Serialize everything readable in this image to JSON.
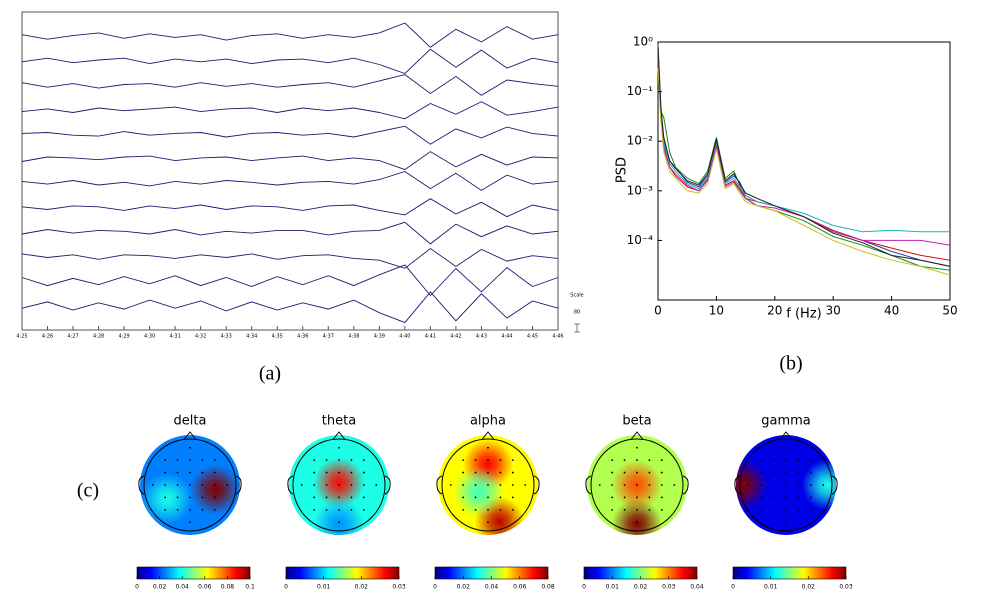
{
  "chart_data": [
    {
      "type": "eeg",
      "caption": "(a)",
      "scale_title": "Scale",
      "scale_text": "80",
      "color": "#1c1c70",
      "x": [
        25,
        26,
        27,
        28,
        29,
        30,
        31,
        32,
        33,
        34,
        35,
        36,
        37,
        38,
        39,
        40,
        41,
        42,
        43,
        44,
        45,
        46
      ],
      "xlim": [
        25,
        46
      ],
      "xticks": [
        {
          "value": 25,
          "label": "4:25"
        },
        {
          "value": 26,
          "label": "4:26"
        },
        {
          "value": 27,
          "label": "4:27"
        },
        {
          "value": 28,
          "label": "4:28"
        },
        {
          "value": 29,
          "label": "4:29"
        },
        {
          "value": 30,
          "label": "4:30"
        },
        {
          "value": 31,
          "label": "4:31"
        },
        {
          "value": 32,
          "label": "4:32"
        },
        {
          "value": 33,
          "label": "4:33"
        },
        {
          "value": 34,
          "label": "4:34"
        },
        {
          "value": 35,
          "label": "4:35"
        },
        {
          "value": 36,
          "label": "4:36"
        },
        {
          "value": 37,
          "label": "4:37"
        },
        {
          "value": 38,
          "label": "4:38"
        },
        {
          "value": 39,
          "label": "4:39"
        },
        {
          "value": 40,
          "label": "4:40"
        },
        {
          "value": 41,
          "label": "4:41"
        },
        {
          "value": 42,
          "label": "4:42"
        },
        {
          "value": 43,
          "label": "4:43"
        },
        {
          "value": 44,
          "label": "4:44"
        },
        {
          "value": 45,
          "label": "4:45"
        },
        {
          "value": 46,
          "label": "4:46"
        }
      ],
      "series": [
        {
          "values": [
            0.2,
            -0.3,
            0.1,
            0.4,
            -0.2,
            0.3,
            -0.1,
            0.2,
            -0.4,
            0.1,
            0.3,
            -0.2,
            0.2,
            -0.1,
            0.4,
            1.5,
            -1.2,
            0.8,
            -0.6,
            1.1,
            -0.3,
            0.2
          ]
        },
        {
          "values": [
            -0.1,
            0.3,
            -0.2,
            0.1,
            0.3,
            -0.3,
            0.2,
            -0.1,
            0.2,
            -0.3,
            0.1,
            0.2,
            -0.2,
            0.3,
            -0.4,
            -1.4,
            1.3,
            -0.7,
            1.2,
            -0.8,
            0.3,
            -0.2
          ]
        },
        {
          "values": [
            0.3,
            -0.2,
            0.2,
            -0.3,
            0.1,
            0.2,
            -0.2,
            0.3,
            -0.1,
            0.2,
            -0.2,
            0.1,
            0.3,
            -0.2,
            0.5,
            1.2,
            -0.9,
            1.0,
            -1.1,
            0.6,
            0.2,
            -0.1
          ]
        },
        {
          "values": [
            -0.2,
            0.1,
            -0.3,
            0.2,
            -0.1,
            0.1,
            0.3,
            -0.2,
            0.1,
            0.2,
            -0.3,
            0.2,
            -0.1,
            0.2,
            -0.3,
            -1.0,
            0.7,
            -0.5,
            0.9,
            -0.6,
            -0.2,
            0.3
          ]
        },
        {
          "values": [
            0.1,
            0.2,
            -0.1,
            -0.2,
            0.3,
            -0.1,
            0.1,
            0.2,
            -0.3,
            0.1,
            0.2,
            -0.1,
            0.1,
            -0.3,
            0.3,
            0.9,
            -1.1,
            0.6,
            -0.4,
            0.8,
            0.1,
            -0.2
          ]
        },
        {
          "values": [
            -0.3,
            0.2,
            0.1,
            -0.1,
            0.2,
            0.3,
            -0.2,
            0.1,
            0.2,
            -0.2,
            0.1,
            0.3,
            -0.2,
            0.1,
            -0.2,
            -1.2,
            0.8,
            -0.9,
            0.5,
            -0.7,
            0.2,
            0.1
          ]
        },
        {
          "values": [
            0.2,
            -0.1,
            0.3,
            -0.2,
            0.1,
            -0.3,
            0.2,
            -0.1,
            0.3,
            0.1,
            -0.2,
            0.1,
            0.2,
            -0.1,
            0.4,
            1.3,
            -0.6,
            1.1,
            -0.8,
            0.9,
            -0.1,
            0.2
          ]
        },
        {
          "values": [
            0.1,
            -0.2,
            0.2,
            0.1,
            -0.3,
            0.2,
            -0.1,
            0.3,
            -0.2,
            0.2,
            0.1,
            -0.3,
            0.2,
            0.3,
            -0.3,
            -0.8,
            1.0,
            -0.7,
            0.6,
            -1.0,
            0.3,
            -0.3
          ]
        },
        {
          "values": [
            -0.2,
            0.3,
            -0.1,
            0.2,
            0.1,
            -0.2,
            0.3,
            -0.3,
            0.1,
            -0.1,
            0.2,
            0.2,
            -0.3,
            0.1,
            0.2,
            1.1,
            -1.3,
            0.9,
            -0.5,
            0.7,
            -0.2,
            0.1
          ]
        },
        {
          "values": [
            0.3,
            -0.1,
            0.2,
            -0.3,
            0.2,
            0.1,
            -0.2,
            0.2,
            -0.1,
            0.3,
            -0.3,
            0.1,
            0.2,
            -0.2,
            -0.4,
            -1.3,
            0.9,
            -1.1,
            0.8,
            -0.5,
            0.1,
            -0.2
          ]
        },
        {
          "values": [
            0.4,
            -0.5,
            0.3,
            -0.4,
            0.5,
            -0.3,
            0.6,
            -0.5,
            0.4,
            -0.6,
            0.5,
            -0.4,
            0.6,
            -0.5,
            0.7,
            1.8,
            -1.6,
            1.4,
            -1.2,
            1.5,
            -0.6,
            0.4
          ]
        },
        {
          "values": [
            -0.3,
            0.4,
            -0.5,
            0.3,
            -0.4,
            0.6,
            -0.3,
            0.5,
            -0.6,
            0.4,
            -0.5,
            0.3,
            -0.4,
            0.6,
            -0.8,
            -1.9,
            1.5,
            -1.7,
            1.3,
            -1.4,
            0.5,
            -0.3
          ]
        }
      ]
    },
    {
      "type": "line",
      "caption": "(b)",
      "xlabel": "f (Hz)",
      "ylabel": "PSD",
      "log_y": true,
      "x": [
        0,
        0.5,
        1,
        2,
        3,
        5,
        7,
        8.5,
        10,
        11.5,
        13,
        14,
        15,
        17,
        20,
        25,
        30,
        35,
        40,
        45,
        50
      ],
      "xlim": [
        0,
        50
      ],
      "xticks": [
        0,
        10,
        20,
        30,
        40,
        50
      ],
      "ylim": [
        6.3e-06,
        1
      ],
      "yticks": [
        {
          "value": 1,
          "label": "10⁰"
        },
        {
          "value": 0.1,
          "label": "10⁻¹"
        },
        {
          "value": 0.01,
          "label": "10⁻²"
        },
        {
          "value": 0.001,
          "label": "10⁻³"
        },
        {
          "value": 0.0001,
          "label": "10⁻⁴"
        }
      ],
      "series": [
        {
          "color": "#1f3fbf",
          "values": [
            0.9,
            0.05,
            0.01,
            0.004,
            0.003,
            0.0015,
            0.0012,
            0.002,
            0.01,
            0.0015,
            0.002,
            0.0015,
            0.0008,
            0.0006,
            0.0005,
            0.0003,
            0.00015,
            0.0001,
            6e-05,
            4e-05,
            3e-05
          ]
        },
        {
          "color": "#1a8a1a",
          "values": [
            0.6,
            0.04,
            0.03,
            0.006,
            0.003,
            0.0018,
            0.0014,
            0.0025,
            0.012,
            0.0018,
            0.0025,
            0.0013,
            0.0007,
            0.0005,
            0.0004,
            0.00025,
            0.00012,
            8e-05,
            5e-05,
            3e-05,
            2.5e-05
          ]
        },
        {
          "color": "#d01010",
          "values": [
            0.5,
            0.03,
            0.008,
            0.003,
            0.002,
            0.0012,
            0.001,
            0.0017,
            0.008,
            0.0013,
            0.0016,
            0.0011,
            0.0007,
            0.0006,
            0.0005,
            0.0003,
            0.00016,
            0.0001,
            7e-05,
            5e-05,
            4e-05
          ]
        },
        {
          "color": "#17b5c4",
          "values": [
            0.7,
            0.04,
            0.009,
            0.0035,
            0.0025,
            0.0014,
            0.0011,
            0.0018,
            0.009,
            0.0014,
            0.0018,
            0.0012,
            0.0008,
            0.0006,
            0.0005,
            0.00035,
            0.0002,
            0.00015,
            0.00016,
            0.00015,
            0.00015
          ]
        },
        {
          "color": "#c020b0",
          "values": [
            0.4,
            0.035,
            0.007,
            0.003,
            0.0022,
            0.0013,
            0.001,
            0.0016,
            0.0085,
            0.0012,
            0.0015,
            0.001,
            0.0007,
            0.0005,
            0.00045,
            0.0003,
            0.00015,
            0.0001,
            0.0001,
            0.0001,
            8e-05
          ]
        },
        {
          "color": "#c8c020",
          "values": [
            0.3,
            0.025,
            0.006,
            0.0025,
            0.0018,
            0.001,
            0.0009,
            0.0014,
            0.007,
            0.0011,
            0.0014,
            0.0009,
            0.0006,
            0.0005,
            0.0004,
            0.0002,
            0.0001,
            6e-05,
            4e-05,
            3e-05,
            2e-05
          ]
        },
        {
          "color": "#202020",
          "values": [
            0.8,
            0.045,
            0.012,
            0.004,
            0.0028,
            0.0016,
            0.0013,
            0.0022,
            0.011,
            0.0016,
            0.0022,
            0.0014,
            0.0009,
            0.0007,
            0.0005,
            0.0003,
            0.00014,
            9e-05,
            5e-05,
            4e-05,
            3e-05
          ]
        }
      ]
    },
    {
      "type": "topomap",
      "caption": "(c)",
      "title": "delta",
      "background": 0.025,
      "peaks": [
        {
          "x": 0.55,
          "y": 0.1,
          "value": 0.1
        },
        {
          "x": -0.5,
          "y": 0.3,
          "value": 0.04
        }
      ],
      "xlim": [
        0,
        0.1
      ],
      "xticks": [
        0,
        0.02,
        0.04,
        0.06,
        0.08,
        0.1
      ]
    },
    {
      "type": "topomap",
      "title": "theta",
      "background": 0.012,
      "peaks": [
        {
          "x": 0,
          "y": -0.05,
          "value": 0.026
        },
        {
          "x": 0,
          "y": 0.85,
          "value": 0.008
        }
      ],
      "xlim": [
        0,
        0.03
      ],
      "xticks": [
        0,
        0.01,
        0.02,
        0.03
      ]
    },
    {
      "type": "topomap",
      "title": "alpha",
      "background": 0.05,
      "peaks": [
        {
          "x": 0,
          "y": -0.45,
          "value": 0.07
        },
        {
          "x": 0.25,
          "y": 0.8,
          "value": 0.075
        },
        {
          "x": -0.2,
          "y": 0.15,
          "value": 0.035
        }
      ],
      "xlim": [
        0,
        0.08
      ],
      "xticks": [
        0,
        0.02,
        0.04,
        0.06,
        0.08
      ]
    },
    {
      "type": "topomap",
      "title": "beta",
      "background": 0.022,
      "peaks": [
        {
          "x": 0,
          "y": 0,
          "value": 0.032
        },
        {
          "x": 0,
          "y": 0.85,
          "value": 0.04
        }
      ],
      "xlim": [
        0,
        0.04
      ],
      "xticks": [
        0,
        0.01,
        0.02,
        0.03,
        0.04
      ]
    },
    {
      "type": "topomap",
      "title": "gamma",
      "background": 0.003,
      "peaks": [
        {
          "x": -0.95,
          "y": 0,
          "value": 0.03
        },
        {
          "x": 0.9,
          "y": 0,
          "value": 0.012
        }
      ],
      "xlim": [
        0,
        0.03
      ],
      "xticks": [
        0,
        0.01,
        0.02,
        0.03
      ]
    }
  ]
}
